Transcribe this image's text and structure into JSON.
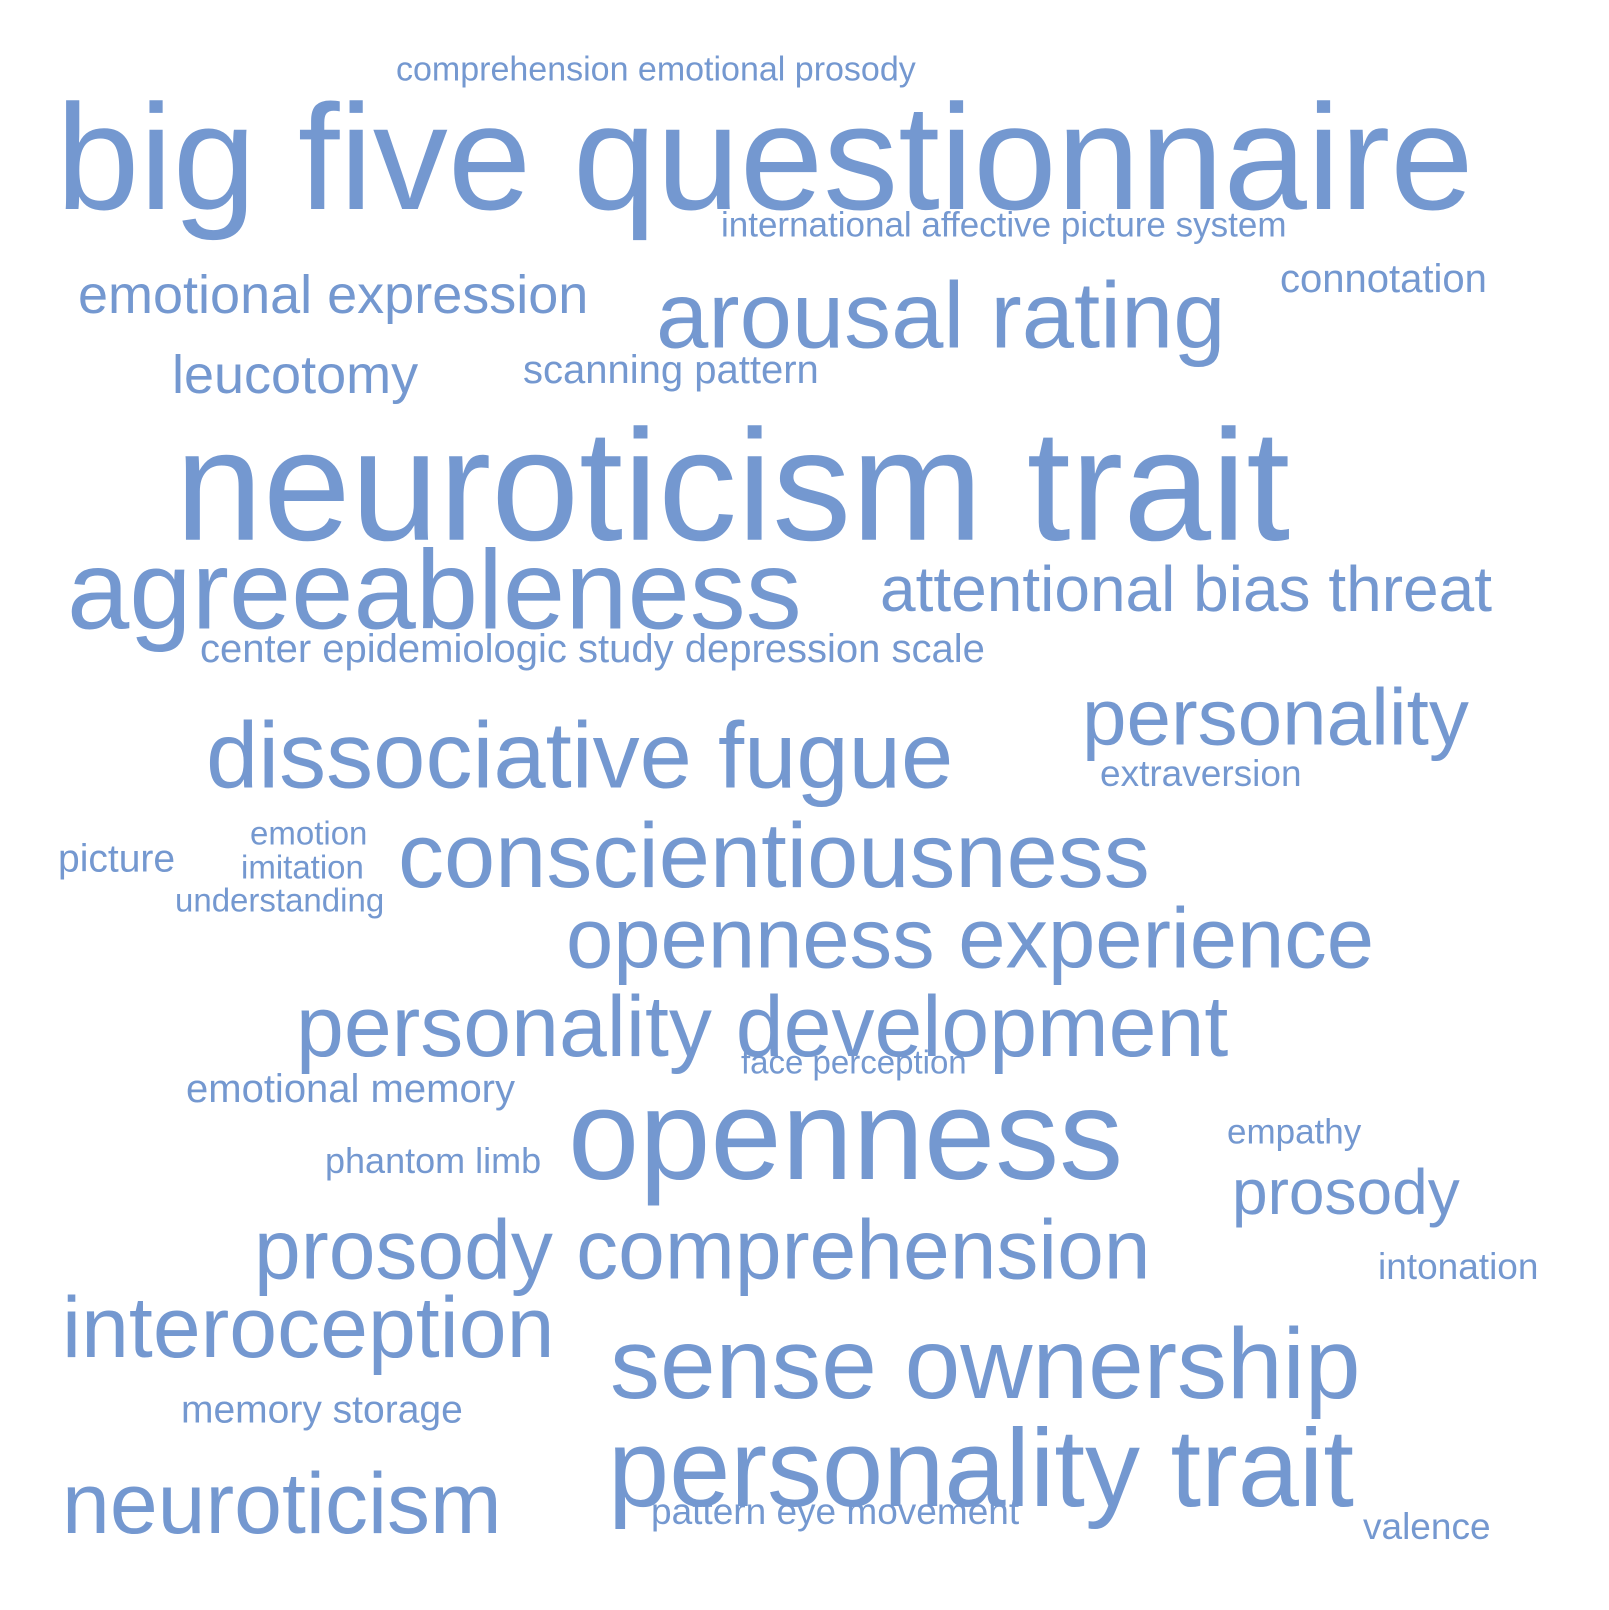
{
  "word_color": "#7498D0",
  "background_color": "#FFFFFF",
  "words": [
    {
      "text": "comprehension emotional prosody"
    },
    {
      "text": "big five questionnaire"
    },
    {
      "text": "international affective picture system"
    },
    {
      "text": "emotional expression"
    },
    {
      "text": "arousal rating"
    },
    {
      "text": "connotation"
    },
    {
      "text": "leucotomy"
    },
    {
      "text": "scanning pattern"
    },
    {
      "text": "neuroticism trait"
    },
    {
      "text": "agreeableness"
    },
    {
      "text": "attentional bias threat"
    },
    {
      "text": "center epidemiologic study depression scale"
    },
    {
      "text": "personality"
    },
    {
      "text": "dissociative fugue"
    },
    {
      "text": "extraversion"
    },
    {
      "text": "emotion"
    },
    {
      "text": "picture"
    },
    {
      "text": "conscientiousness"
    },
    {
      "text": "imitation"
    },
    {
      "text": "understanding"
    },
    {
      "text": "openness experience"
    },
    {
      "text": "personality development"
    },
    {
      "text": "face perception"
    },
    {
      "text": "emotional memory"
    },
    {
      "text": "openness"
    },
    {
      "text": "empathy"
    },
    {
      "text": "phantom limb"
    },
    {
      "text": "prosody"
    },
    {
      "text": "prosody comprehension"
    },
    {
      "text": "intonation"
    },
    {
      "text": "interoception"
    },
    {
      "text": "sense ownership"
    },
    {
      "text": "memory storage"
    },
    {
      "text": "personality trait"
    },
    {
      "text": "neuroticism"
    },
    {
      "text": "pattern eye movement"
    },
    {
      "text": "valence"
    }
  ]
}
